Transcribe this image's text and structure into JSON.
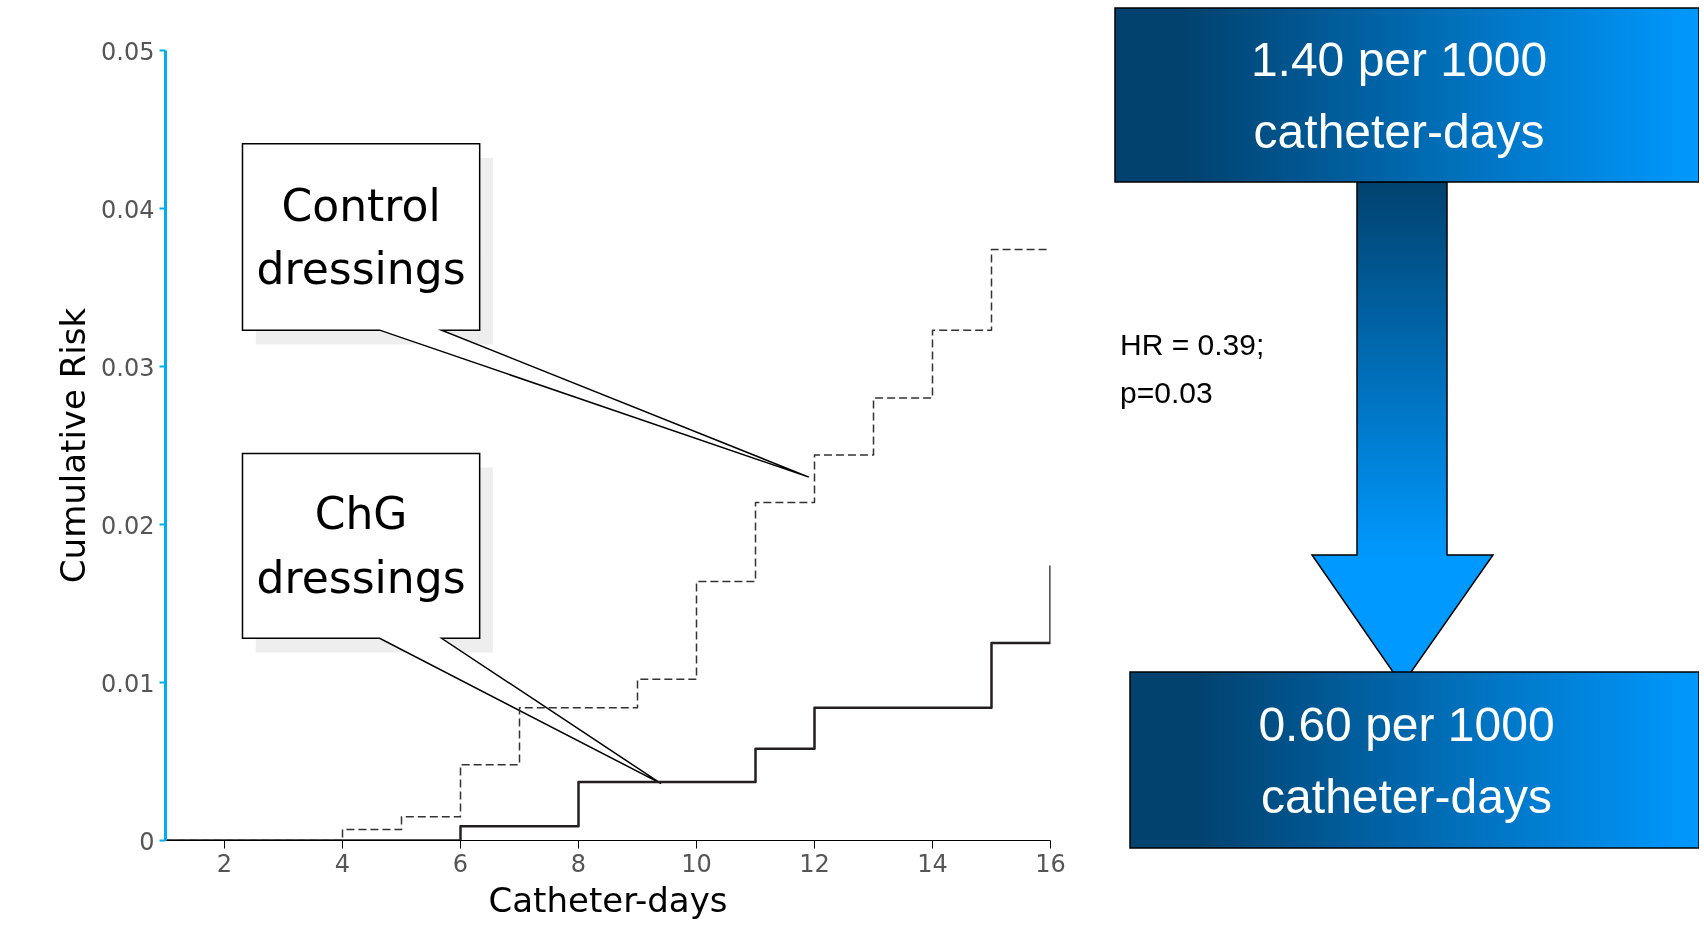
{
  "chart_data": [
    {
      "type": "step",
      "xlabel": "Catheter-days",
      "ylabel": "Cumulative Risk",
      "xlim": [
        1,
        16
      ],
      "ylim": [
        0,
        0.05
      ],
      "xticks": [
        2,
        4,
        6,
        8,
        10,
        12,
        14,
        16
      ],
      "yticks": [
        0,
        0.01,
        0.02,
        0.03,
        0.04,
        0.05
      ],
      "grid": false,
      "marker": "none",
      "series": [
        {
          "color": "#333333",
          "line_style": "dashed",
          "x": [
            1,
            4,
            5,
            6,
            7,
            9,
            10,
            11,
            12,
            13,
            14,
            15,
            16
          ],
          "values": [
            0,
            0.0007,
            0.0015,
            0.0048,
            0.0084,
            0.0102,
            0.0164,
            0.0214,
            0.0244,
            0.028,
            0.0323,
            0.0374,
            0.0374
          ]
        },
        {
          "color": "#231f20",
          "line_style": "solid",
          "x": [
            1,
            6,
            8,
            11,
            12,
            15,
            16
          ],
          "values": [
            0,
            0.0009,
            0.0037,
            0.0058,
            0.0084,
            0.0125,
            0.0174
          ]
        }
      ],
      "annotations": [
        "Control dressings",
        "ChG dressings"
      ]
    },
    {
      "type": "other",
      "annotations": [
        "1.40 per 1000 catheter-days",
        "HR = 0.39; p=0.03",
        "0.60 per 1000 catheter-days"
      ]
    }
  ]
}
